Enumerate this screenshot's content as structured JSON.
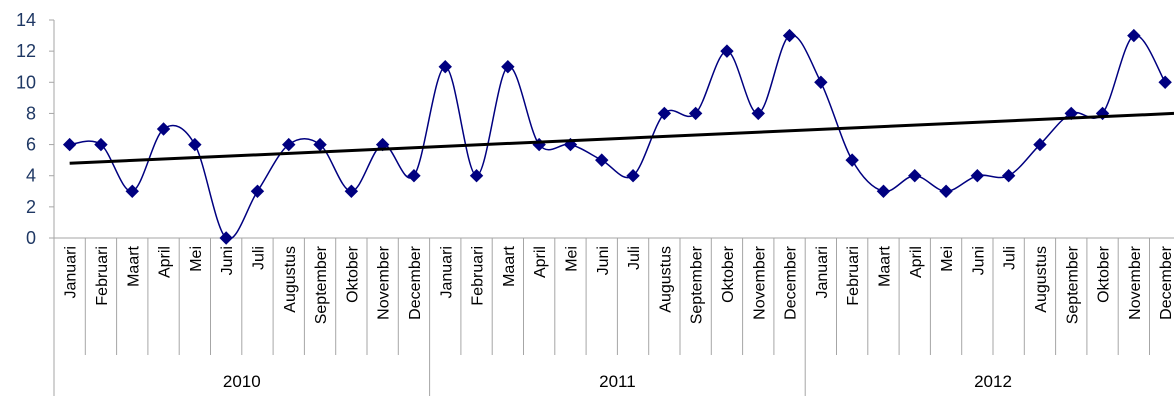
{
  "chart_data": {
    "type": "line",
    "title": "",
    "xlabel": "",
    "ylabel": "",
    "ylim": [
      0,
      14
    ],
    "yticks": [
      0,
      2,
      4,
      6,
      8,
      10,
      12,
      14
    ],
    "grid": false,
    "legend": "none",
    "smooth": true,
    "years": [
      "2010",
      "2011",
      "2012"
    ],
    "months": [
      "Januari",
      "Februari",
      "Maart",
      "April",
      "Mei",
      "Juni",
      "Juli",
      "Augustus",
      "September",
      "Oktober",
      "November",
      "December"
    ],
    "series": [
      {
        "values": [
          6,
          6,
          3,
          7,
          6,
          0,
          3,
          6,
          6,
          3,
          6,
          4,
          11,
          4,
          11,
          6,
          6,
          5,
          4,
          8,
          8,
          12,
          8,
          13,
          10,
          5,
          3,
          4,
          3,
          4,
          4,
          6,
          8,
          8,
          13,
          10
        ],
        "color": "#000080",
        "marker": "diamond"
      }
    ],
    "trendline": {
      "type": "linear",
      "start": 4.8,
      "end": 8.0,
      "color": "#000000"
    }
  }
}
